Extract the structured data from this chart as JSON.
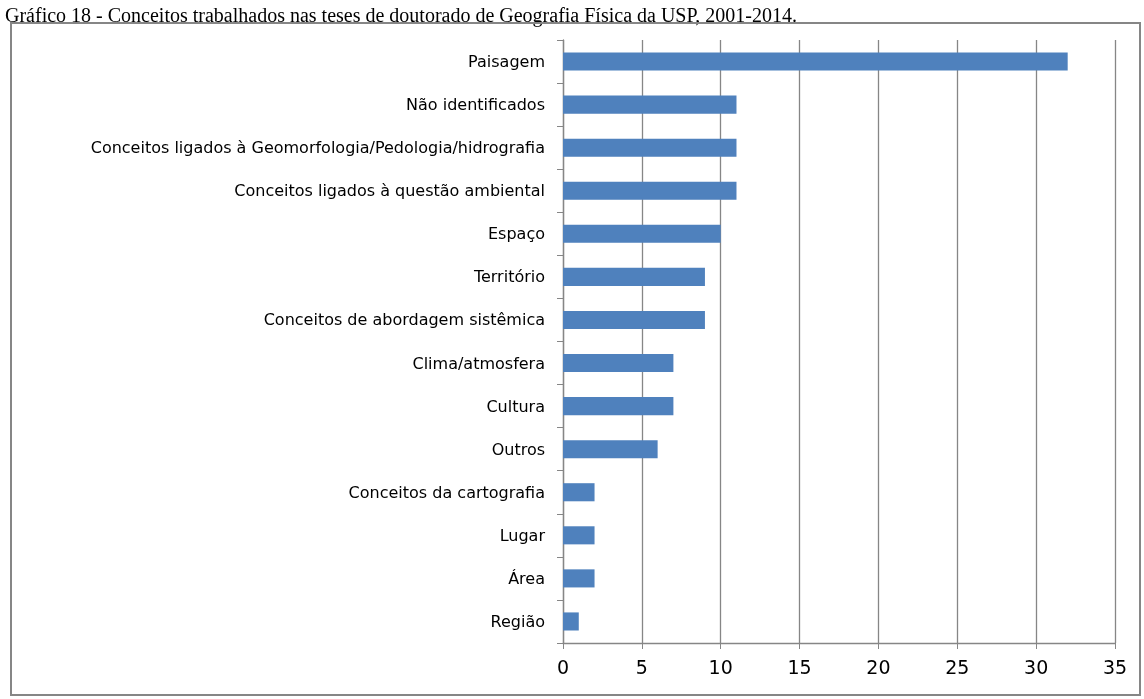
{
  "chart_data": {
    "type": "bar",
    "orientation": "horizontal",
    "title": "Gráfico 18 - Conceitos trabalhados nas teses de doutorado de Geografia Física da USP, 2001-2014.",
    "categories": [
      "Paisagem",
      "Não identificados",
      "Conceitos ligados à Geomorfologia/Pedologia/hidrografia",
      "Conceitos ligados à questão ambiental",
      "Espaço",
      "Território",
      "Conceitos de abordagem sistêmica",
      "Clima/atmosfera",
      "Cultura",
      "Outros",
      "Conceitos da cartografia",
      "Lugar",
      "Área",
      "Região"
    ],
    "values": [
      32,
      11,
      11,
      11,
      10,
      9,
      9,
      7,
      7,
      6,
      2,
      2,
      2,
      1
    ],
    "color": "#4f81bd",
    "xlim": [
      0,
      35
    ],
    "xticks": [
      0,
      5,
      10,
      15,
      20,
      25,
      30,
      35
    ],
    "grid": "x"
  }
}
